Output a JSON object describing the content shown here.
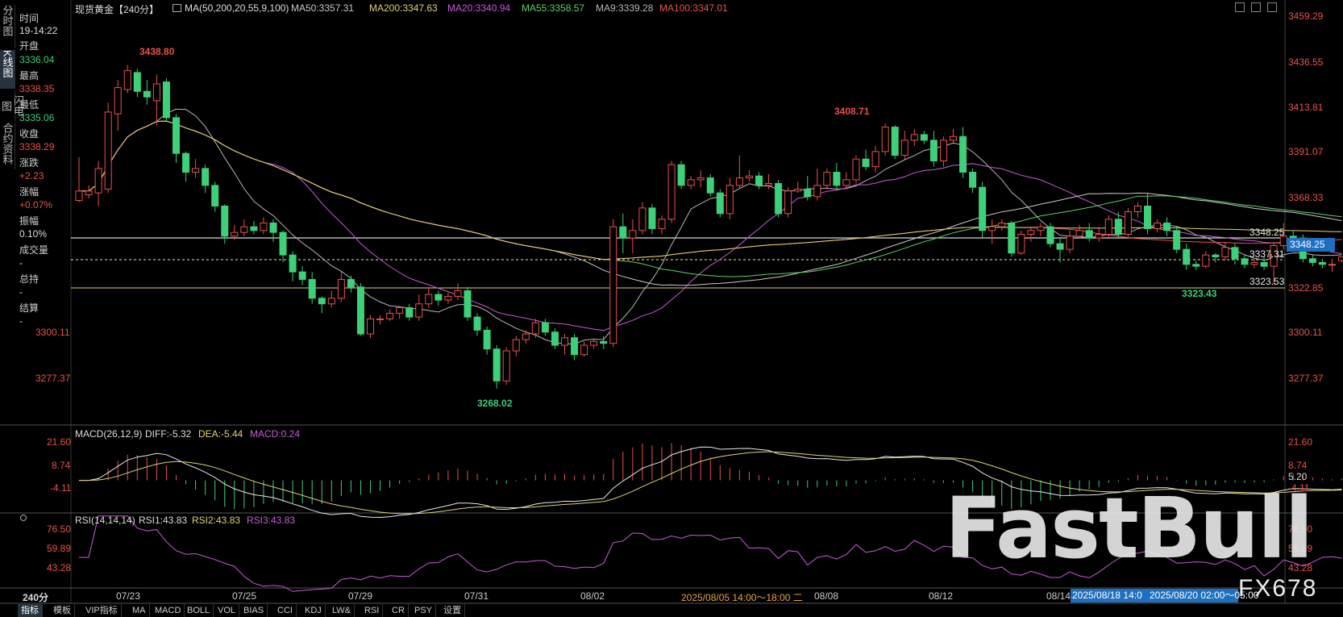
{
  "colors": {
    "up": "#e8524a",
    "down": "#3ecf79",
    "ma50": "#c9c9c9",
    "ma200": "#e0d277",
    "ma20": "#c65cd6",
    "ma55": "#5fcf66",
    "ma9": "#b8b8b8",
    "ma100": "#e8524a",
    "bg": "#000000",
    "accent": "#1f6fbf"
  },
  "sidebar": {
    "tabs": [
      "分时图",
      "K线图",
      "闪电图",
      "合约资料"
    ]
  },
  "info": {
    "time_label": "时间",
    "time_value": "19-14:22",
    "open_label": "开盘",
    "open_value": "3336.04",
    "high_label": "最高",
    "high_value": "3338.35",
    "low_label": "最低",
    "low_value": "3335.06",
    "close_label": "收盘",
    "close_value": "3338.29",
    "change_label": "涨跌",
    "change_value": "+2.23",
    "pct_label": "涨幅",
    "pct_value": "+0.07%",
    "amp_label": "振幅",
    "amp_value": "0.10%",
    "vol_label": "成交量",
    "vol_value": "-",
    "oi_label": "总持",
    "oi_value": "-",
    "settle_label": "结算",
    "settle_value": "-"
  },
  "header": {
    "symbol": "现货黄金【240分】",
    "ma_params": "MA(50,200,20,55,9,100)",
    "ma50": "MA50:3357.31",
    "ma200": "MA200:3347.63",
    "ma20": "MA20:3340.94",
    "ma55": "MA55:3358.57",
    "ma9": "MA9:3339.28",
    "ma100": "MA100:3347.01"
  },
  "main_axis": {
    "ticks": [
      "3459.29",
      "3436.55",
      "3413.81",
      "3391.07",
      "3368.33",
      "3322.85",
      "3300.11",
      "3277.37"
    ],
    "left_ticks": [
      "3300.11",
      "3277.37"
    ],
    "current_price": "3348.25"
  },
  "annotations": {
    "high1": "3438.80",
    "high2": "3408.71",
    "low1": "3268.02",
    "low2": "3323.43",
    "line_a": "3348.25",
    "line_b": "3337.31",
    "line_c": "3323.53"
  },
  "macd": {
    "title": "MACD(26,12,9)",
    "diff": "DIFF:-5.32",
    "dea": "DEA:-5.44",
    "macd": "MACD:0.24",
    "ticks": [
      "21.60",
      "8.74",
      "-4.11"
    ],
    "right_ticks": [
      "21.60",
      "8.74",
      "5.20",
      "-4.11"
    ]
  },
  "rsi": {
    "title": "RSI(14,14,14)",
    "rsi1": "RSI1:43.83",
    "rsi2": "RSI2:43.83",
    "rsi3": "RSI3:43.83",
    "ticks": [
      "76.50",
      "59.89",
      "43.28"
    ]
  },
  "xaxis": {
    "period": "240分",
    "dates": [
      "07/23",
      "07/25",
      "07/29",
      "07/31",
      "08/02",
      "08/08",
      "08/12",
      "08/14"
    ],
    "gap_label": "2025/08/05 14:00～18:00 二",
    "cursor1": "2025/08/18 14:0",
    "cursor2": "2025/08/20 02:00～05:00"
  },
  "bottom_tabs": [
    "指标",
    "模板",
    "VIP指标",
    "MA",
    "MACD",
    "BOLL",
    "VOL",
    "BIAS",
    "CCI",
    "KDJ",
    "LW&",
    "RSI",
    "CR",
    "PSY",
    "设置"
  ],
  "watermark": {
    "brand": "FastBull",
    "sub": "FX678"
  },
  "chart_data": {
    "type": "candlestick",
    "ylim": [
      3258,
      3466
    ],
    "candles": [
      [
        3368,
        3373,
        3367,
        3391
      ],
      [
        3371,
        3373,
        3369,
        3376
      ],
      [
        3372,
        3385,
        3365,
        3389
      ],
      [
        3374,
        3415,
        3372,
        3420
      ],
      [
        3414,
        3428,
        3405,
        3432
      ],
      [
        3427,
        3437,
        3425,
        3440
      ],
      [
        3436,
        3426,
        3423,
        3438
      ],
      [
        3426,
        3423,
        3419,
        3432
      ],
      [
        3421,
        3430,
        3408,
        3435
      ],
      [
        3431,
        3412,
        3410,
        3433
      ],
      [
        3412,
        3393,
        3388,
        3414
      ],
      [
        3393,
        3383,
        3378,
        3394
      ],
      [
        3383,
        3385,
        3380,
        3390
      ],
      [
        3385,
        3376,
        3372,
        3387
      ],
      [
        3376,
        3365,
        3362,
        3378
      ],
      [
        3365,
        3349,
        3345,
        3366
      ],
      [
        3349,
        3351,
        3347,
        3355
      ],
      [
        3351,
        3354,
        3349,
        3358
      ],
      [
        3354,
        3352,
        3350,
        3357
      ],
      [
        3352,
        3356,
        3350,
        3359
      ],
      [
        3356,
        3351,
        3346,
        3358
      ],
      [
        3351,
        3339,
        3335,
        3352
      ],
      [
        3339,
        3330,
        3325,
        3341
      ],
      [
        3330,
        3326,
        3323,
        3333
      ],
      [
        3326,
        3316,
        3313,
        3330
      ],
      [
        3316,
        3313,
        3308,
        3317
      ],
      [
        3313,
        3316,
        3311,
        3320
      ],
      [
        3316,
        3326,
        3314,
        3330
      ],
      [
        3326,
        3322,
        3319,
        3328
      ],
      [
        3322,
        3297,
        3296,
        3324
      ],
      [
        3297,
        3305,
        3295,
        3307
      ],
      [
        3305,
        3305,
        3302,
        3307
      ],
      [
        3305,
        3308,
        3304,
        3310
      ],
      [
        3308,
        3311,
        3305,
        3312
      ],
      [
        3311,
        3306,
        3304,
        3313
      ],
      [
        3306,
        3313,
        3304,
        3318
      ],
      [
        3313,
        3318,
        3311,
        3322
      ],
      [
        3318,
        3315,
        3312,
        3320
      ],
      [
        3315,
        3317,
        3313,
        3319
      ],
      [
        3317,
        3320,
        3315,
        3324
      ],
      [
        3320,
        3306,
        3304,
        3322
      ],
      [
        3306,
        3299,
        3296,
        3308
      ],
      [
        3299,
        3289,
        3286,
        3301
      ],
      [
        3289,
        3272,
        3268,
        3291
      ],
      [
        3272,
        3288,
        3270,
        3290
      ],
      [
        3288,
        3294,
        3285,
        3296
      ],
      [
        3294,
        3297,
        3292,
        3299
      ],
      [
        3297,
        3303,
        3295,
        3305
      ],
      [
        3303,
        3298,
        3296,
        3305
      ],
      [
        3298,
        3291,
        3289,
        3300
      ],
      [
        3291,
        3295,
        3286,
        3297
      ],
      [
        3295,
        3286,
        3283,
        3297
      ],
      [
        3286,
        3291,
        3285,
        3293
      ],
      [
        3291,
        3293,
        3289,
        3294
      ],
      [
        3293,
        3292,
        3289,
        3296
      ],
      [
        3292,
        3354,
        3290,
        3358
      ],
      [
        3354,
        3348,
        3340,
        3361
      ],
      [
        3348,
        3352,
        3340,
        3358
      ],
      [
        3352,
        3364,
        3350,
        3367
      ],
      [
        3364,
        3353,
        3350,
        3366
      ],
      [
        3353,
        3358,
        3350,
        3360
      ],
      [
        3358,
        3387,
        3356,
        3389
      ],
      [
        3387,
        3376,
        3374,
        3389
      ],
      [
        3376,
        3379,
        3374,
        3381
      ],
      [
        3379,
        3380,
        3375,
        3384
      ],
      [
        3380,
        3372,
        3370,
        3382
      ],
      [
        3372,
        3361,
        3359,
        3374
      ],
      [
        3361,
        3376,
        3358,
        3380
      ],
      [
        3376,
        3380,
        3374,
        3392
      ],
      [
        3380,
        3381,
        3378,
        3384
      ],
      [
        3381,
        3376,
        3374,
        3383
      ],
      [
        3376,
        3377,
        3374,
        3382
      ],
      [
        3377,
        3361,
        3359,
        3379
      ],
      [
        3361,
        3373,
        3359,
        3375
      ],
      [
        3373,
        3374,
        3372,
        3378
      ],
      [
        3374,
        3370,
        3368,
        3381
      ],
      [
        3370,
        3376,
        3368,
        3385
      ],
      [
        3376,
        3383,
        3374,
        3385
      ],
      [
        3383,
        3376,
        3374,
        3388
      ],
      [
        3376,
        3379,
        3374,
        3383
      ],
      [
        3379,
        3390,
        3377,
        3392
      ],
      [
        3390,
        3386,
        3384,
        3395
      ],
      [
        3386,
        3394,
        3383,
        3397
      ],
      [
        3394,
        3407,
        3392,
        3409
      ],
      [
        3407,
        3392,
        3390,
        3408
      ],
      [
        3392,
        3400,
        3390,
        3405
      ],
      [
        3400,
        3403,
        3397,
        3406
      ],
      [
        3403,
        3400,
        3398,
        3405
      ],
      [
        3400,
        3389,
        3386,
        3405
      ],
      [
        3389,
        3400,
        3386,
        3402
      ],
      [
        3400,
        3402,
        3398,
        3406
      ],
      [
        3402,
        3383,
        3380,
        3407
      ],
      [
        3383,
        3375,
        3372,
        3385
      ],
      [
        3375,
        3352,
        3348,
        3378
      ],
      [
        3352,
        3354,
        3345,
        3358
      ],
      [
        3354,
        3356,
        3352,
        3358
      ],
      [
        3356,
        3340,
        3338,
        3357
      ],
      [
        3340,
        3350,
        3339,
        3352
      ],
      [
        3350,
        3352,
        3346,
        3354
      ],
      [
        3352,
        3354,
        3349,
        3356
      ],
      [
        3354,
        3345,
        3343,
        3356
      ],
      [
        3345,
        3342,
        3335,
        3348
      ],
      [
        3342,
        3349,
        3340,
        3352
      ],
      [
        3349,
        3352,
        3348,
        3355
      ],
      [
        3352,
        3348,
        3346,
        3356
      ],
      [
        3348,
        3350,
        3346,
        3354
      ],
      [
        3350,
        3358,
        3348,
        3360
      ],
      [
        3358,
        3350,
        3348,
        3362
      ],
      [
        3350,
        3362,
        3348,
        3364
      ],
      [
        3362,
        3365,
        3359,
        3367
      ],
      [
        3365,
        3353,
        3350,
        3372
      ],
      [
        3353,
        3356,
        3351,
        3358
      ],
      [
        3356,
        3352,
        3349,
        3359
      ],
      [
        3352,
        3342,
        3340,
        3354
      ],
      [
        3342,
        3334,
        3331,
        3345
      ],
      [
        3334,
        3333,
        3331,
        3336
      ],
      [
        3333,
        3339,
        3332,
        3341
      ],
      [
        3339,
        3338,
        3335,
        3340
      ],
      [
        3338,
        3343,
        3336,
        3346
      ],
      [
        3343,
        3337,
        3334,
        3345
      ],
      [
        3337,
        3334,
        3332,
        3339
      ],
      [
        3334,
        3335,
        3332,
        3337
      ],
      [
        3335,
        3333,
        3331,
        3338
      ],
      [
        3333,
        3344,
        3323,
        3346
      ],
      [
        3344,
        3349,
        3342,
        3356
      ],
      [
        3349,
        3348,
        3346,
        3352
      ],
      [
        3348,
        3337,
        3335,
        3350
      ],
      [
        3337,
        3335,
        3333,
        3339
      ],
      [
        3335,
        3334,
        3332,
        3337
      ],
      [
        3334,
        3334,
        3330,
        3337
      ],
      [
        3336,
        3338,
        3335,
        3338
      ]
    ]
  }
}
